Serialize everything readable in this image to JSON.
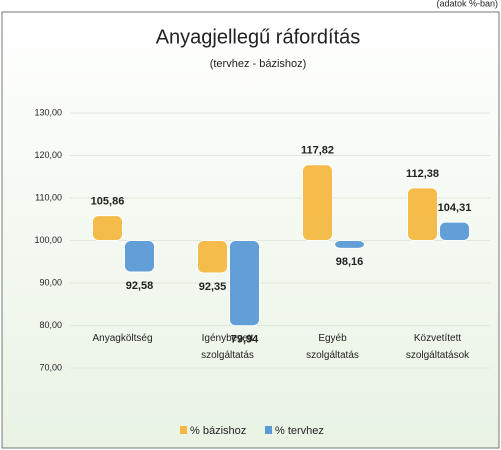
{
  "chart_data": {
    "type": "bar",
    "title": "Anyagjellegű ráfordítás",
    "subtitle": "(tervhez - bázishoz)",
    "annotation": "(adatok %-ban)",
    "categories": [
      "Anyagköltség",
      "Igénybevett szolgáltatás",
      "Egyéb szolgáltatás",
      "Közvetített szolgáltatások"
    ],
    "series": [
      {
        "name": "% bázishoz",
        "color": "#f5b942",
        "values": [
          105.86,
          92.35,
          117.82,
          112.38
        ],
        "value_labels": [
          "105,86",
          "92,35",
          "117,82",
          "112,38"
        ]
      },
      {
        "name": "% tervhez",
        "color": "#5b9bd5",
        "values": [
          92.58,
          79.94,
          98.16,
          104.31
        ],
        "value_labels": [
          "92,58",
          "79,94",
          "98,16",
          "104,31"
        ]
      }
    ],
    "baseline": 100,
    "ylim": [
      70,
      130
    ],
    "yticks": [
      {
        "value": 70,
        "label": "70,00"
      },
      {
        "value": 80,
        "label": "80,00"
      },
      {
        "value": 90,
        "label": "90,00"
      },
      {
        "value": 100,
        "label": "100,00"
      },
      {
        "value": 110,
        "label": "110,00"
      },
      {
        "value": 120,
        "label": "120,00"
      },
      {
        "value": 130,
        "label": "130,00"
      }
    ],
    "legend": "bottom"
  }
}
